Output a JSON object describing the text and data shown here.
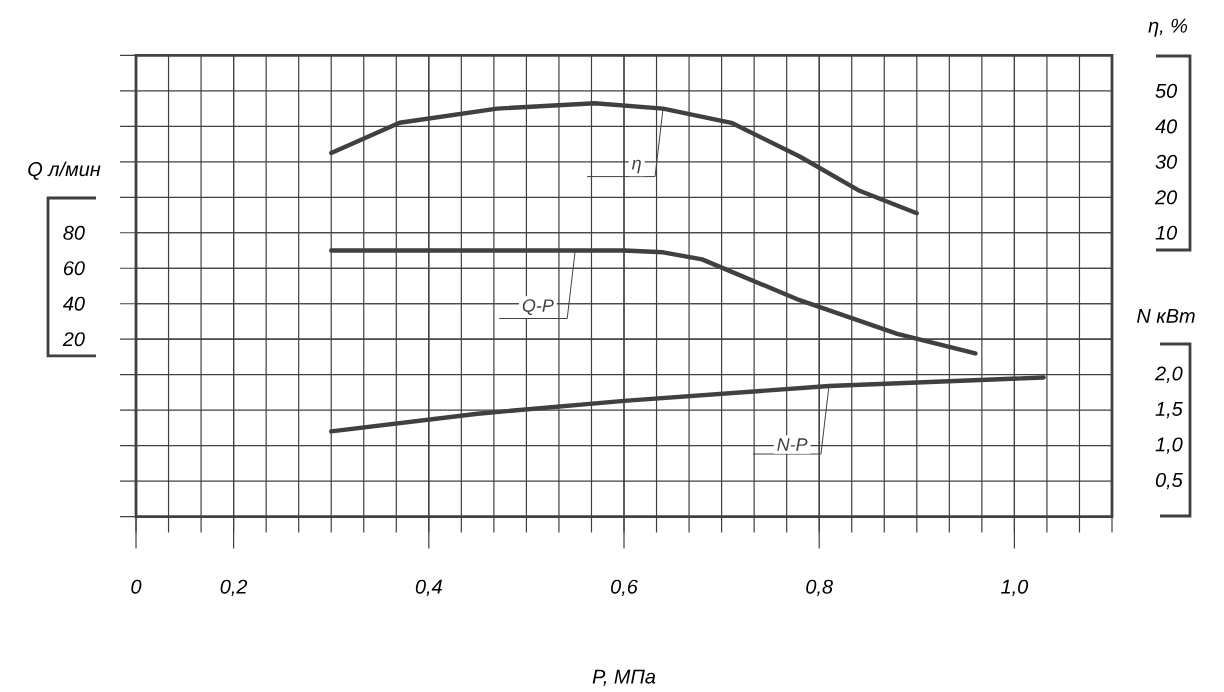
{
  "chart_data": {
    "type": "line",
    "xlabel": "P, МПа",
    "ylabel": "Q л/мин",
    "y2label": "η, %",
    "y3label": "N кВт",
    "xlim": [
      0.1,
      1.1
    ],
    "xticks": [
      {
        "value": 0.1,
        "label": "0"
      },
      {
        "value": 0.2,
        "label": "0,2"
      },
      {
        "value": 0.4,
        "label": "0,4"
      },
      {
        "value": 0.6,
        "label": "0,6"
      },
      {
        "value": 0.8,
        "label": "0,8"
      },
      {
        "value": 1.0,
        "label": "1,0"
      }
    ],
    "ylim": [
      -80,
      180
    ],
    "yticks": [
      20,
      40,
      60,
      80
    ],
    "y2lim": [
      -70,
      60
    ],
    "y2ticks": [
      10,
      20,
      30,
      40,
      50
    ],
    "y3lim": [
      0,
      6.5
    ],
    "y3ticks": [
      {
        "value": 0.5,
        "label": "0,5"
      },
      {
        "value": 1.0,
        "label": "1,0"
      },
      {
        "value": 1.5,
        "label": "1,5"
      },
      {
        "value": 2.0,
        "label": "2,0"
      }
    ],
    "grid": true,
    "series": [
      {
        "name": "η",
        "axis": "y2",
        "color": "#404040",
        "x": [
          0.3,
          0.37,
          0.47,
          0.57,
          0.64,
          0.71,
          0.78,
          0.84,
          0.9
        ],
        "values": [
          32.5,
          41,
          45,
          46.5,
          45,
          41,
          31.5,
          22,
          15.5
        ]
      },
      {
        "name": "Q-P",
        "axis": "y",
        "color": "#404040",
        "x": [
          0.3,
          0.45,
          0.55,
          0.6,
          0.64,
          0.68,
          0.78,
          0.88,
          0.96
        ],
        "values": [
          70,
          70,
          70,
          70,
          69,
          65,
          42,
          23,
          12
        ]
      },
      {
        "name": "N-P",
        "axis": "y3",
        "color": "#404040",
        "x": [
          0.3,
          0.45,
          0.6,
          0.81,
          1.03
        ],
        "values": [
          1.2,
          1.45,
          1.63,
          1.84,
          1.96
        ]
      }
    ]
  }
}
